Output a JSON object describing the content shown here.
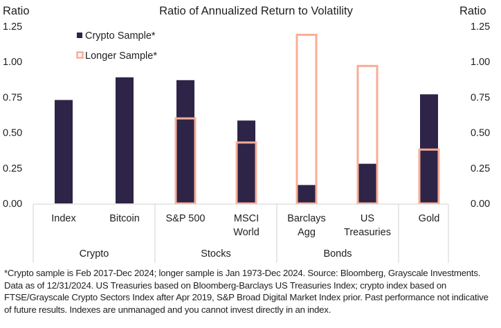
{
  "chart_data": {
    "type": "bar",
    "title": "Ratio of Annualized Return to Volatility",
    "ylabel_left": "Ratio",
    "ylabel_right": "Ratio",
    "ylim": [
      0,
      1.25
    ],
    "yticks": [
      "0.00",
      "0.25",
      "0.50",
      "0.75",
      "1.00",
      "1.25"
    ],
    "ytick_values": [
      0,
      0.25,
      0.5,
      0.75,
      1.0,
      1.25
    ],
    "grid": false,
    "legend_position": "top-left",
    "categories": [
      [
        "Index"
      ],
      [
        "Bitcoin"
      ],
      [
        "S&P 500"
      ],
      [
        "MSCI",
        "World"
      ],
      [
        "Barclays",
        "Agg"
      ],
      [
        "US",
        "Treasuries"
      ],
      [
        "Gold"
      ]
    ],
    "groups": [
      {
        "label": "Crypto",
        "span": 2
      },
      {
        "label": "Stocks",
        "span": 2
      },
      {
        "label": "Bonds",
        "span": 2
      },
      {
        "label": "",
        "span": 1
      }
    ],
    "series": [
      {
        "name": "Crypto Sample*",
        "style": "filled",
        "color": "#2d2448",
        "values": [
          0.73,
          0.89,
          0.87,
          0.585,
          0.13,
          0.28,
          0.77
        ]
      },
      {
        "name": "Longer Sample*",
        "style": "outline",
        "color": "#f9ad95",
        "values": [
          null,
          null,
          0.6,
          0.43,
          1.19,
          0.97,
          0.38
        ]
      }
    ]
  },
  "footnote": "*Crypto sample is Feb 2017-Dec 2024; longer sample is Jan 1973-Dec 2024. Source: Bloomberg, Grayscale Investments. Data as of 12/31/2024. US Treasuries based on Bloomberg-Barclays US Treasuries Index; crypto index based on FTSE/Grayscale Crypto Sectors Index after Apr 2019, S&P Broad Digital Market Index prior. Past performance not indicative of future results. Indexes are unmanaged and you cannot invest directly in an index."
}
